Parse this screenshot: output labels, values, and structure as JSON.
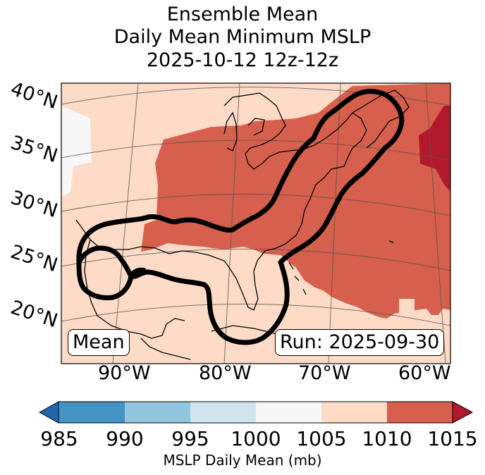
{
  "title": {
    "line1": "Ensemble Mean",
    "line2": "Daily Mean Minimum MSLP",
    "line3": "2025-10-12 12z-12z"
  },
  "map": {
    "lat_labels": [
      "40°N",
      "35°N",
      "30°N",
      "25°N",
      "20°N"
    ],
    "lon_labels": [
      "90°W",
      "80°W",
      "70°W",
      "60°W"
    ],
    "mean_label": "Mean",
    "run_label": "Run: 2025-09-30",
    "colors": {
      "c985": "#2166ac",
      "c990": "#4393c3",
      "c995": "#92c5de",
      "c1000": "#d1e5f0",
      "c1005": "#f7f7f7",
      "c1010": "#fddbc7",
      "c1015": "#d6604d",
      "over": "#b2182b",
      "outline": "#000000"
    }
  },
  "colorbar": {
    "ticks": [
      "985",
      "990",
      "995",
      "1000",
      "1005",
      "1010",
      "1015"
    ],
    "label": "MSLP Daily Mean (mb)"
  }
}
